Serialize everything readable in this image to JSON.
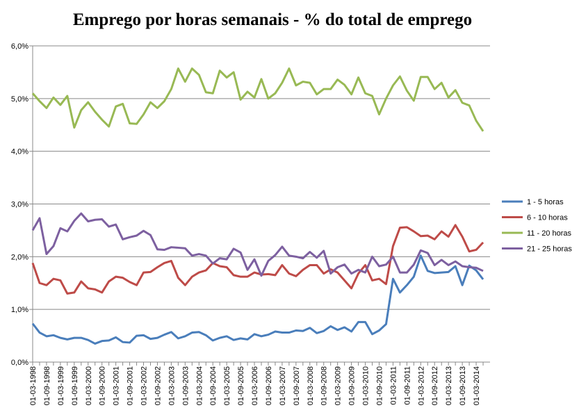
{
  "chart_data": {
    "type": "line",
    "title": "Emprego por horas semanais - % do total de emprego",
    "categories": [
      "01-03-1998",
      null,
      "01-09-1998",
      null,
      "01-03-1999",
      null,
      "01-09-1999",
      null,
      "01-03-2000",
      null,
      "01-09-2000",
      null,
      "01-03-2001",
      null,
      "01-09-2001",
      null,
      "01-03-2002",
      null,
      "01-09-2002",
      null,
      "01-03-2003",
      null,
      "01-09-2003",
      null,
      "01-03-2004",
      null,
      "01-09-2004",
      null,
      "01-03-2005",
      null,
      "01-09-2005",
      null,
      "01-03-2006",
      null,
      "01-09-2006",
      null,
      "01-03-2007",
      null,
      "01-09-2007",
      null,
      "01-03-2008",
      null,
      "01-09-2008",
      null,
      "01-03-2009",
      null,
      "01-09-2009",
      null,
      "01-03-2010",
      null,
      "01-09-2010",
      null,
      "01-03-2011",
      null,
      "01-09-2011",
      null,
      "01-03-2012",
      null,
      "01-09-2012",
      null,
      "01-03-2013",
      null,
      "01-09-2013",
      null,
      "01-03-2014",
      null
    ],
    "series": [
      {
        "name": "1 - 5 horas",
        "color": "#4a7ebb",
        "values": [
          0.73,
          0.56,
          0.49,
          0.51,
          0.46,
          0.43,
          0.46,
          0.46,
          0.42,
          0.35,
          0.4,
          0.41,
          0.47,
          0.38,
          0.37,
          0.5,
          0.51,
          0.44,
          0.46,
          0.52,
          0.57,
          0.45,
          0.49,
          0.56,
          0.57,
          0.51,
          0.41,
          0.46,
          0.49,
          0.42,
          0.45,
          0.43,
          0.53,
          0.49,
          0.52,
          0.58,
          0.56,
          0.56,
          0.6,
          0.59,
          0.65,
          0.55,
          0.59,
          0.68,
          0.61,
          0.66,
          0.58,
          0.76,
          0.76,
          0.53,
          0.6,
          0.72,
          1.58,
          1.32,
          1.46,
          1.62,
          2.02,
          1.73,
          1.69,
          1.7,
          1.71,
          1.82,
          1.46,
          1.83,
          1.74,
          1.57
        ]
      },
      {
        "name": "6 - 10 horas",
        "color": "#be4b48",
        "values": [
          1.88,
          1.5,
          1.46,
          1.58,
          1.55,
          1.3,
          1.32,
          1.53,
          1.4,
          1.38,
          1.32,
          1.53,
          1.62,
          1.6,
          1.52,
          1.46,
          1.7,
          1.71,
          1.8,
          1.88,
          1.92,
          1.6,
          1.46,
          1.62,
          1.7,
          1.74,
          1.88,
          1.82,
          1.8,
          1.65,
          1.62,
          1.62,
          1.7,
          1.66,
          1.67,
          1.65,
          1.84,
          1.68,
          1.63,
          1.75,
          1.84,
          1.84,
          1.68,
          1.76,
          1.7,
          1.55,
          1.4,
          1.68,
          1.84,
          1.55,
          1.58,
          1.48,
          2.2,
          2.55,
          2.56,
          2.48,
          2.39,
          2.4,
          2.33,
          2.48,
          2.38,
          2.6,
          2.38,
          2.1,
          2.13,
          2.27
        ]
      },
      {
        "name": "11 - 20 horas",
        "color": "#98b954",
        "values": [
          5.1,
          4.95,
          4.82,
          5.02,
          4.88,
          5.05,
          4.45,
          4.78,
          4.93,
          4.75,
          4.6,
          4.47,
          4.85,
          4.9,
          4.53,
          4.52,
          4.7,
          4.93,
          4.82,
          4.95,
          5.18,
          5.57,
          5.32,
          5.57,
          5.45,
          5.12,
          5.1,
          5.53,
          5.4,
          5.5,
          4.98,
          5.13,
          5.02,
          5.37,
          5.0,
          5.1,
          5.3,
          5.57,
          5.25,
          5.32,
          5.3,
          5.08,
          5.18,
          5.18,
          5.36,
          5.26,
          5.08,
          5.4,
          5.1,
          5.05,
          4.7,
          5.0,
          5.25,
          5.42,
          5.15,
          4.96,
          5.41,
          5.41,
          5.18,
          5.3,
          5.02,
          5.16,
          4.92,
          4.87,
          4.58,
          4.38
        ]
      },
      {
        "name": "21 - 25 horas",
        "color": "#7d60a0",
        "values": [
          2.5,
          2.73,
          2.05,
          2.2,
          2.54,
          2.48,
          2.68,
          2.82,
          2.67,
          2.7,
          2.71,
          2.57,
          2.61,
          2.33,
          2.37,
          2.4,
          2.49,
          2.41,
          2.14,
          2.13,
          2.18,
          2.17,
          2.16,
          2.02,
          2.05,
          2.02,
          1.87,
          1.97,
          1.95,
          2.15,
          2.08,
          1.75,
          1.95,
          1.64,
          1.92,
          2.03,
          2.19,
          2.02,
          2.0,
          1.97,
          2.09,
          1.98,
          2.11,
          1.68,
          1.8,
          1.85,
          1.68,
          1.75,
          1.7,
          2.0,
          1.82,
          1.85,
          2.0,
          1.7,
          1.7,
          1.85,
          2.12,
          2.07,
          1.84,
          1.94,
          1.84,
          1.91,
          1.82,
          1.8,
          1.79,
          1.73
        ]
      }
    ],
    "ylim": [
      0,
      6
    ],
    "yticks": [
      {
        "value": 0,
        "label": "0,0%"
      },
      {
        "value": 1,
        "label": "1,0%"
      },
      {
        "value": 2,
        "label": "2,0%"
      },
      {
        "value": 3,
        "label": "3,0%"
      },
      {
        "value": 4,
        "label": "4,0%"
      },
      {
        "value": 5,
        "label": "5,0%"
      },
      {
        "value": 6,
        "label": "6,0%"
      }
    ],
    "grid": true,
    "legend": "right"
  }
}
